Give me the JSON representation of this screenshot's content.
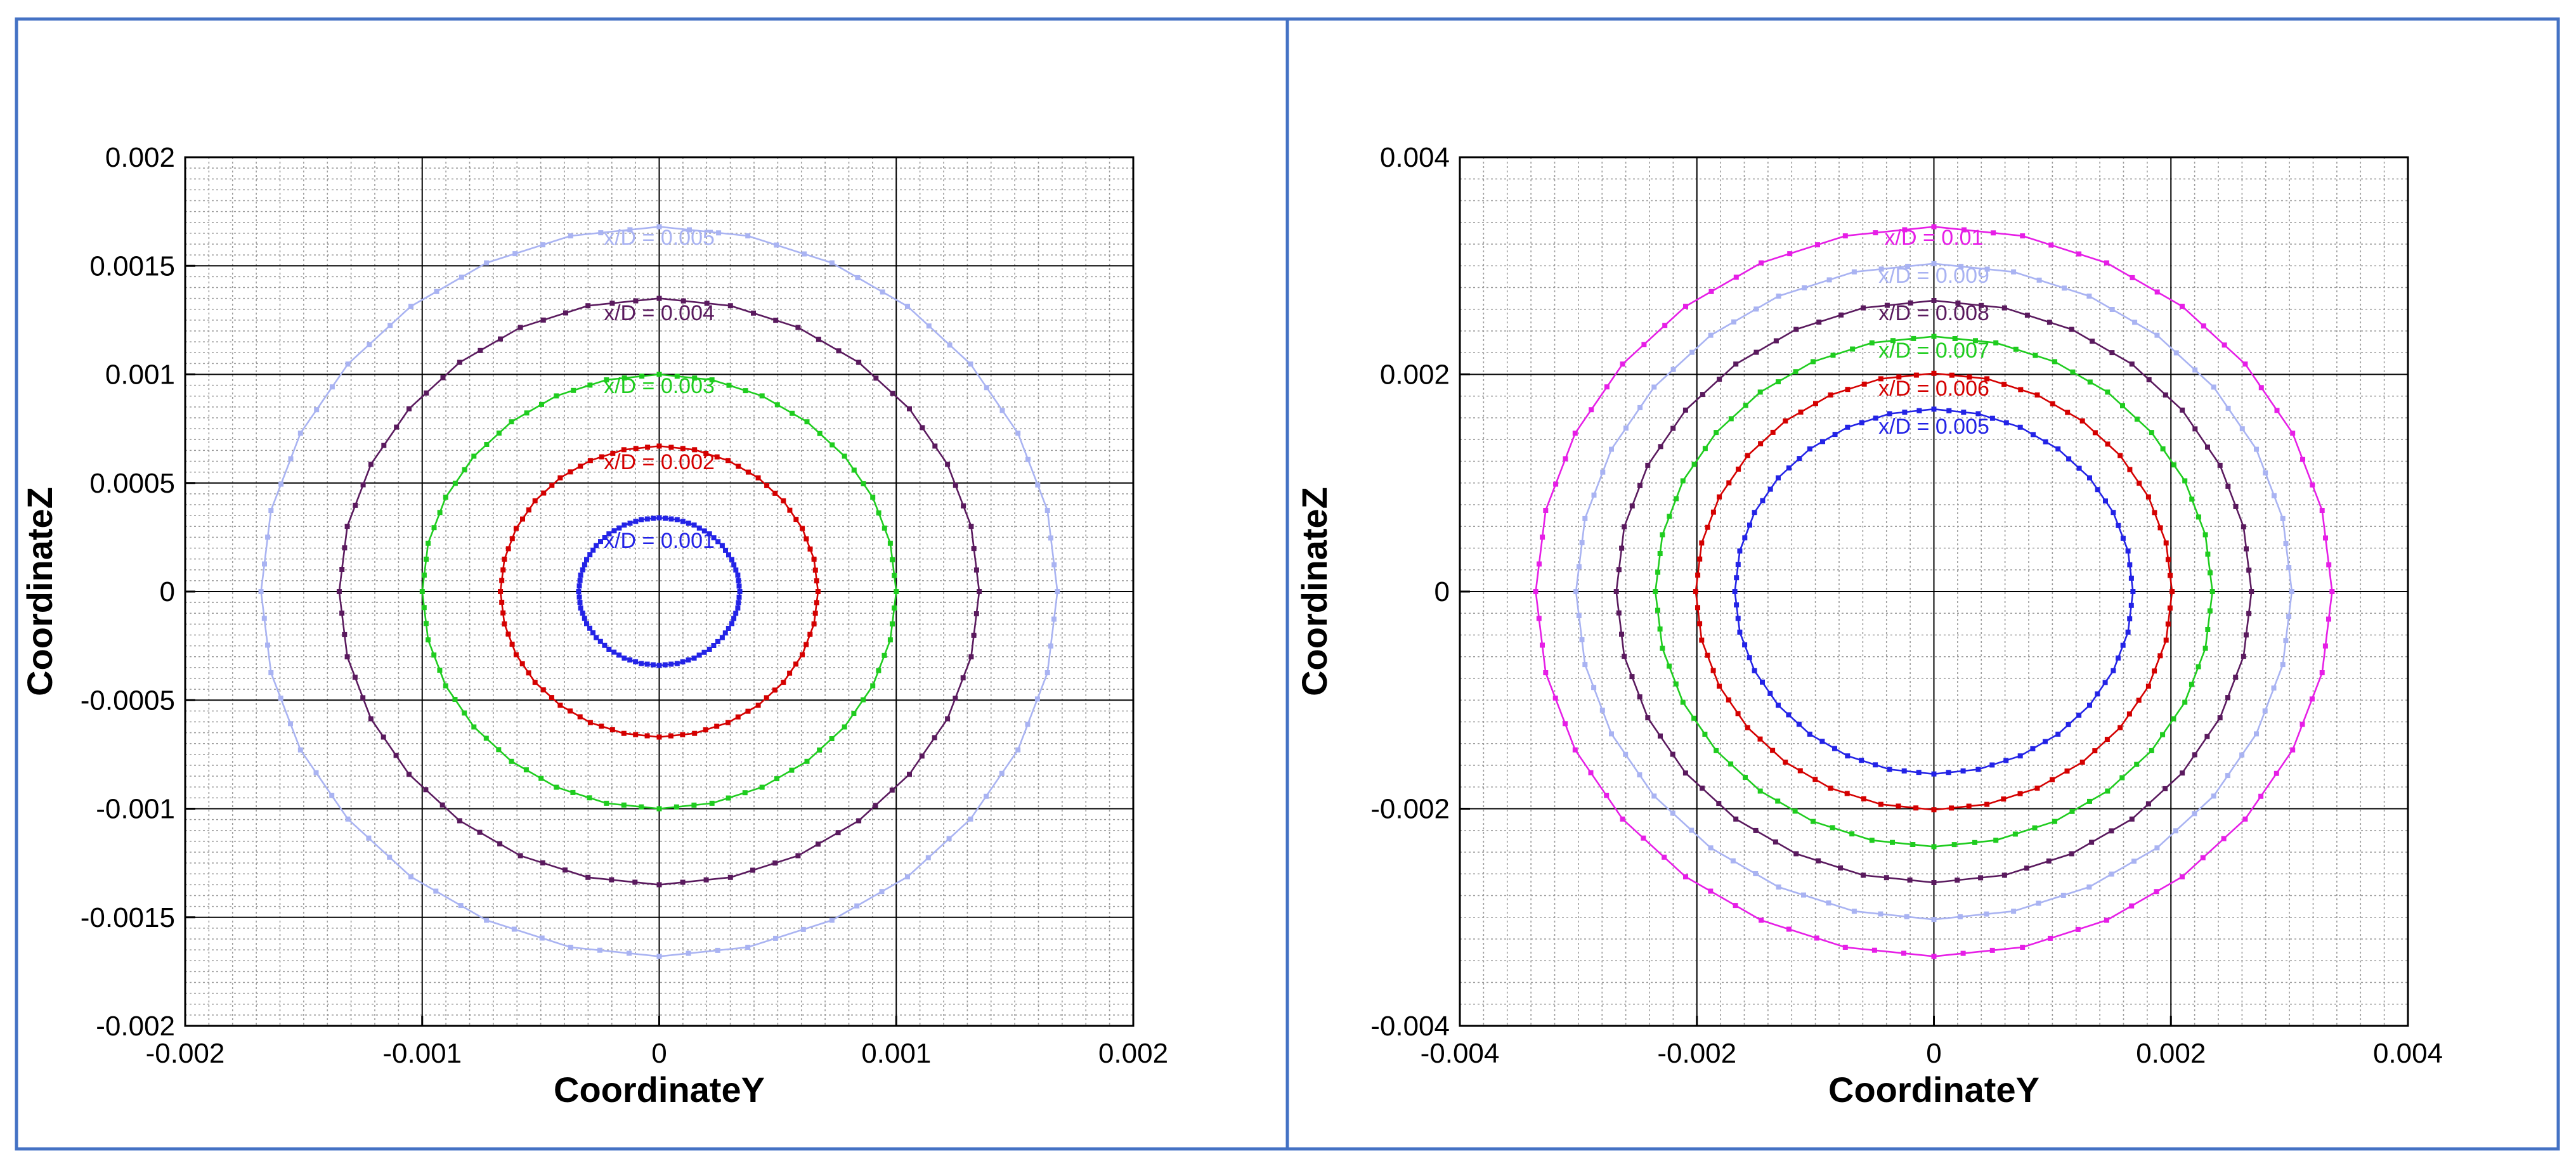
{
  "chart_data": [
    {
      "type": "line",
      "title": "",
      "xlabel": "CoordinateY",
      "ylabel": "CoordinateZ",
      "xlim": [
        -0.002,
        0.002
      ],
      "ylim": [
        -0.002,
        0.002
      ],
      "x_ticks": [
        -0.002,
        -0.001,
        0,
        0.001,
        0.002
      ],
      "x_tick_labels": [
        "-0.002",
        "-0.001",
        "0",
        "0.001",
        "0.002"
      ],
      "y_ticks": [
        0.002,
        0.0015,
        0.001,
        0.0005,
        0,
        -0.0005,
        -0.001,
        -0.0015,
        -0.002
      ],
      "y_tick_labels": [
        "0.002",
        "0.0015",
        "0.001",
        "0.0005",
        "0",
        "-0.0005",
        "-0.001",
        "-0.0015",
        "-0.002"
      ],
      "grid": true,
      "series": [
        {
          "name": "x/D = 0.005",
          "color": "#a9b3f2",
          "radius": 0.00168
        },
        {
          "name": "x/D = 0.004",
          "color": "#5a1a5e",
          "radius": 0.00135
        },
        {
          "name": "x/D = 0.003",
          "color": "#1fcc1f",
          "radius": 0.001
        },
        {
          "name": "x/D = 0.002",
          "color": "#d40000",
          "radius": 0.00067
        },
        {
          "name": "x/D = 0.001",
          "color": "#2323e6",
          "radius": 0.00034
        }
      ]
    },
    {
      "type": "line",
      "title": "",
      "xlabel": "CoordinateY",
      "ylabel": "CoordinateZ",
      "xlim": [
        -0.004,
        0.004
      ],
      "ylim": [
        -0.004,
        0.004
      ],
      "x_ticks": [
        -0.004,
        -0.002,
        0,
        0.002,
        0.004
      ],
      "x_tick_labels": [
        "-0.004",
        "-0.002",
        "0",
        "0.002",
        "0.004"
      ],
      "y_ticks": [
        0.004,
        0.002,
        0,
        -0.002,
        -0.004
      ],
      "y_tick_labels": [
        "0.004",
        "0.002",
        "0",
        "-0.002",
        "-0.004"
      ],
      "grid": true,
      "series": [
        {
          "name": "x/D = 0.01",
          "color": "#e61ee6",
          "radius": 0.00336
        },
        {
          "name": "x/D = 0.009",
          "color": "#a9b3f2",
          "radius": 0.00302
        },
        {
          "name": "x/D = 0.008",
          "color": "#5a1a5e",
          "radius": 0.00268
        },
        {
          "name": "x/D = 0.007",
          "color": "#1fcc1f",
          "radius": 0.00235
        },
        {
          "name": "x/D = 0.006",
          "color": "#d40000",
          "radius": 0.00201
        },
        {
          "name": "x/D = 0.005",
          "color": "#2323e6",
          "radius": 0.00168
        }
      ]
    }
  ]
}
